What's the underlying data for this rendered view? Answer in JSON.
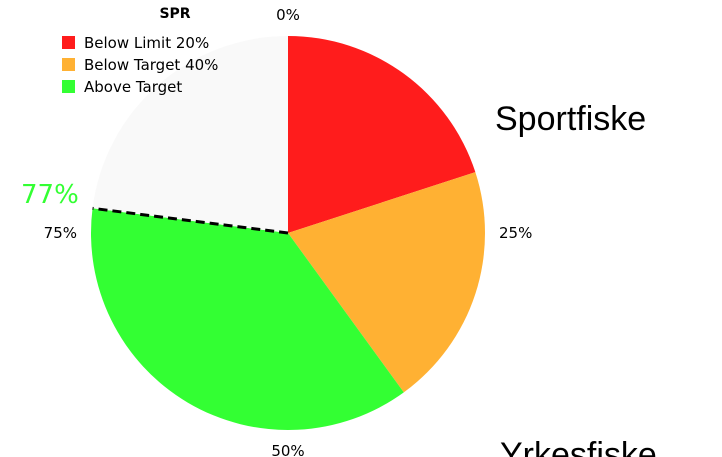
{
  "chart_data": {
    "type": "pie",
    "legend_title": "SPR",
    "categories": [
      "Below Limit 20%",
      "Below Target 40%",
      "Above Target",
      null
    ],
    "values": [
      20,
      20,
      37,
      23
    ],
    "colors": [
      "#ff1c1c",
      "#ffb133",
      "#33ff33",
      "#f9f9f9"
    ],
    "ticks": [
      {
        "value": 0,
        "label": "0%"
      },
      {
        "value": 25,
        "label": "25%"
      },
      {
        "value": 50,
        "label": "50%"
      },
      {
        "value": 75,
        "label": "75%"
      }
    ],
    "marker": {
      "value": 77,
      "label": "77%"
    },
    "marker_color": "#33ff33",
    "legend": "upper left",
    "annotations": [
      "Sportfiske",
      "Yrkesfiske"
    ]
  }
}
